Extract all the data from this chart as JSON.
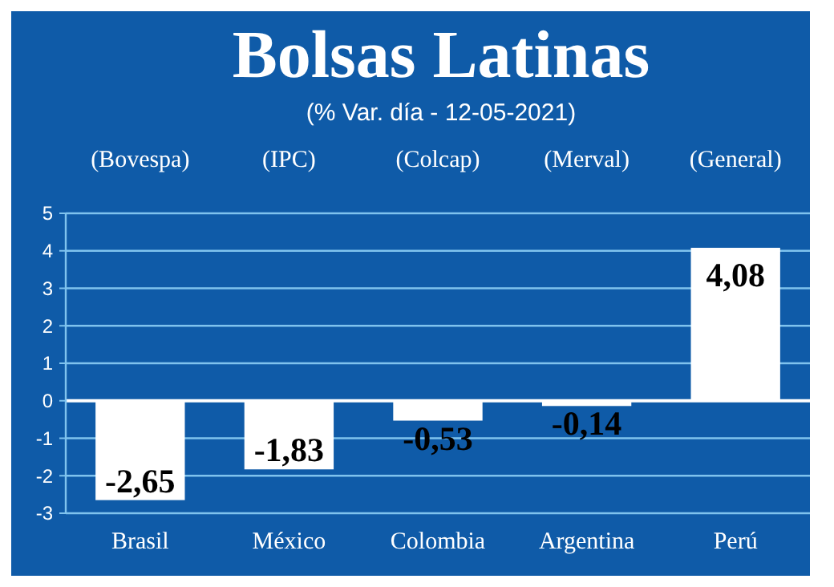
{
  "chart_data": {
    "type": "bar",
    "title": "Bolsas Latinas",
    "subtitle": "(% Var. día - 12-05-2021)",
    "categories": [
      "Brasil",
      "México",
      "Colombia",
      "Argentina",
      "Perú"
    ],
    "values": [
      -2.65,
      -1.83,
      -0.53,
      -0.14,
      4.08
    ],
    "value_labels": [
      "-2,65",
      "-1,83",
      "-0,53",
      "-0,14",
      "4,08"
    ],
    "color": "#ffffff",
    "annotations": [
      "(Bovespa)",
      "(IPC)",
      "(Colcap)",
      "(Merval)",
      "(General)"
    ],
    "ylim": [
      -3,
      5
    ],
    "yticks": [
      -3,
      -2,
      -1,
      0,
      1,
      2,
      3,
      4,
      5
    ],
    "grid": "y"
  }
}
